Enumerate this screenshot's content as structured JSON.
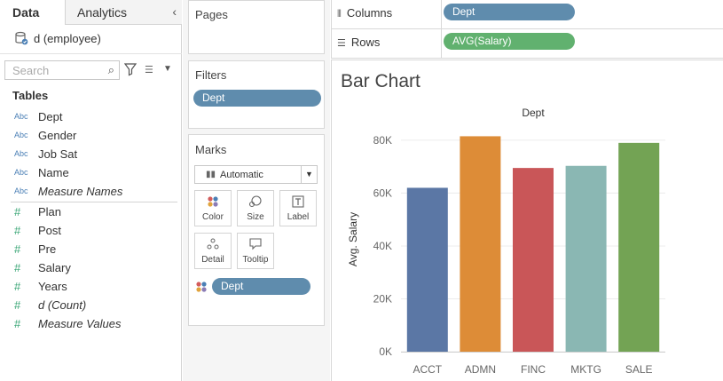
{
  "tabs": {
    "data": "Data",
    "analytics": "Analytics"
  },
  "datasource": {
    "name": "d (employee)",
    "icon": "database-icon"
  },
  "search": {
    "placeholder": "Search"
  },
  "tables_header": "Tables",
  "dimensions": [
    {
      "type": "Abc",
      "name": "Dept",
      "italic": false
    },
    {
      "type": "Abc",
      "name": "Gender",
      "italic": false
    },
    {
      "type": "Abc",
      "name": "Job Sat",
      "italic": false
    },
    {
      "type": "Abc",
      "name": "Name",
      "italic": false
    },
    {
      "type": "Abc",
      "name": "Measure Names",
      "italic": true
    }
  ],
  "measures": [
    {
      "type": "#",
      "name": "Plan",
      "italic": false
    },
    {
      "type": "#",
      "name": "Post",
      "italic": false
    },
    {
      "type": "#",
      "name": "Pre",
      "italic": false
    },
    {
      "type": "#",
      "name": "Salary",
      "italic": false
    },
    {
      "type": "#",
      "name": "Years",
      "italic": false
    },
    {
      "type": "#",
      "name": "d (Count)",
      "italic": true
    },
    {
      "type": "#",
      "name": "Measure Values",
      "italic": true
    }
  ],
  "pages": {
    "title": "Pages"
  },
  "filters": {
    "title": "Filters",
    "pill": "Dept"
  },
  "marks": {
    "title": "Marks",
    "type": "Automatic",
    "buttons": {
      "color": "Color",
      "size": "Size",
      "label": "Label",
      "detail": "Detail",
      "tooltip": "Tooltip"
    },
    "pill": "Dept"
  },
  "columns": {
    "label": "Columns",
    "pill": "Dept"
  },
  "rows": {
    "label": "Rows",
    "pill": "AVG(Salary)"
  },
  "colors": {
    "dim_pill": "#5f8cad",
    "measure_pill": "#61b16f"
  },
  "chart_data": {
    "type": "bar",
    "title": "Bar Chart",
    "header": "Dept",
    "ylabel": "Avg. Salary",
    "xlabel": "",
    "categories": [
      "ACCT",
      "ADMN",
      "FINC",
      "MKTG",
      "SALE"
    ],
    "values": [
      62000,
      81500,
      69500,
      70300,
      79000
    ],
    "colors": [
      "#5b77a5",
      "#dd8c37",
      "#c95658",
      "#8ab7b3",
      "#73a354"
    ],
    "yticks": [
      0,
      20000,
      40000,
      60000,
      80000
    ],
    "ytick_labels": [
      "0K",
      "20K",
      "40K",
      "60K",
      "80K"
    ],
    "ylim": [
      0,
      85000
    ],
    "grid": true
  }
}
